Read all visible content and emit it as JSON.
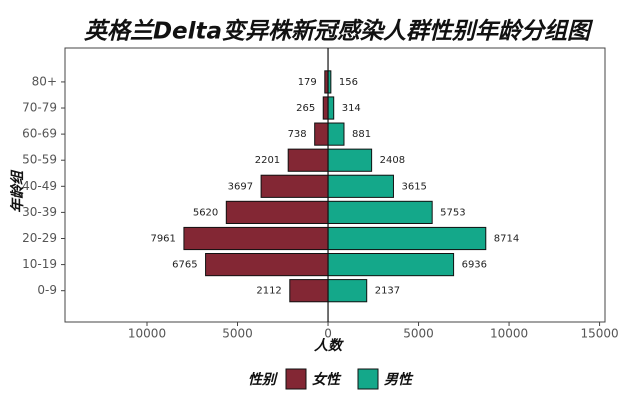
{
  "chart_data": {
    "type": "pyramid",
    "title": "英格兰Delta变异株新冠感染人群性别年龄分组图",
    "x_label": "人数",
    "y_label": "年龄组",
    "legend_title": "性别",
    "categories": [
      "0-9",
      "10-19",
      "20-29",
      "30-39",
      "40-49",
      "50-59",
      "60-69",
      "70-79",
      "80+"
    ],
    "series": [
      {
        "name": "女性",
        "color": "#832734",
        "values": [
          2112,
          6765,
          7961,
          5620,
          3697,
          2201,
          738,
          265,
          179
        ]
      },
      {
        "name": "男性",
        "color": "#14a88a",
        "values": [
          2137,
          6936,
          8714,
          5753,
          3615,
          2408,
          881,
          314,
          156
        ]
      }
    ],
    "xlim": [
      -14530,
      15300
    ],
    "xticks": [
      {
        "value": -10000,
        "label": "10000"
      },
      {
        "value": -5000,
        "label": "5000"
      },
      0,
      5000,
      10000,
      15000
    ]
  }
}
